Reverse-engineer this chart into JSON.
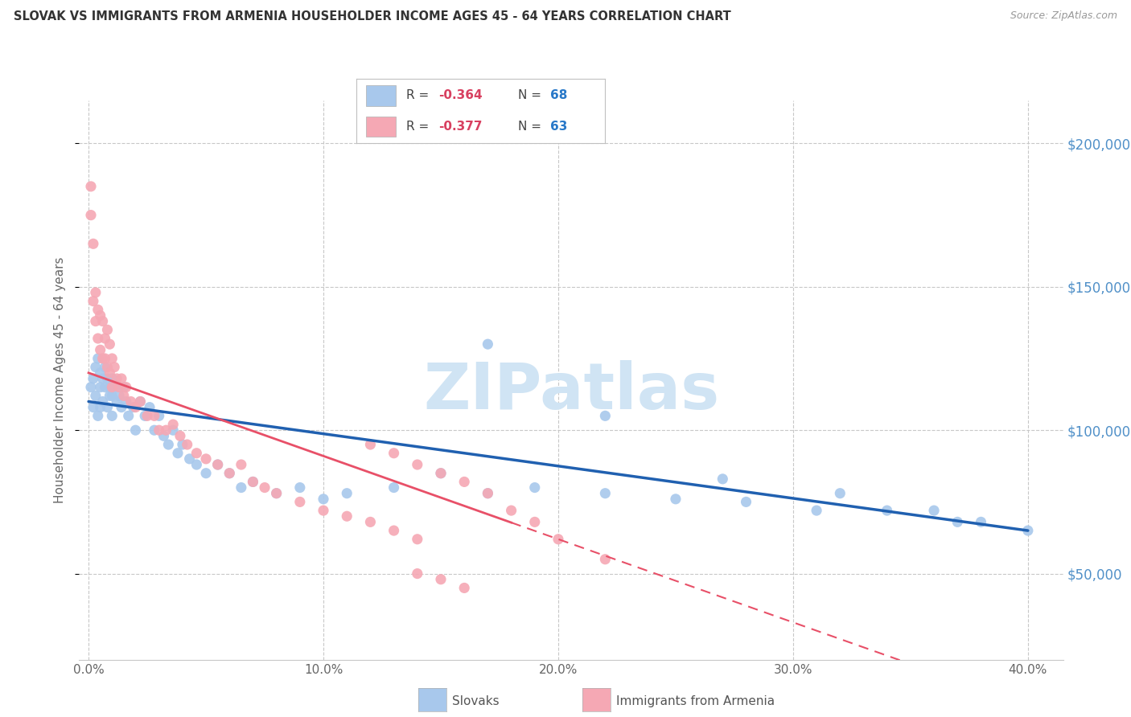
{
  "title": "SLOVAK VS IMMIGRANTS FROM ARMENIA HOUSEHOLDER INCOME AGES 45 - 64 YEARS CORRELATION CHART",
  "source": "Source: ZipAtlas.com",
  "ylabel": "Householder Income Ages 45 - 64 years",
  "x_tick_labels": [
    "0.0%",
    "10.0%",
    "20.0%",
    "30.0%",
    "40.0%"
  ],
  "x_tick_values": [
    0.0,
    0.1,
    0.2,
    0.3,
    0.4
  ],
  "y_tick_values": [
    50000,
    100000,
    150000,
    200000
  ],
  "xlim": [
    -0.004,
    0.415
  ],
  "ylim": [
    20000,
    215000
  ],
  "series1_label": "Slovaks",
  "series1_color": "#a8c8ec",
  "series1_line_color": "#2060b0",
  "series2_label": "Immigrants from Armenia",
  "series2_color": "#f5a8b4",
  "series2_line_color": "#e85068",
  "background_color": "#ffffff",
  "grid_color": "#c8c8c8",
  "title_color": "#333333",
  "right_axis_label_color": "#5090c8",
  "watermark_color": "#d0e4f4",
  "legend_R_color": "#d84060",
  "legend_N_color": "#2878c8",
  "slovaks_x": [
    0.001,
    0.002,
    0.002,
    0.003,
    0.003,
    0.004,
    0.004,
    0.005,
    0.005,
    0.005,
    0.006,
    0.006,
    0.007,
    0.007,
    0.008,
    0.008,
    0.009,
    0.009,
    0.01,
    0.01,
    0.01,
    0.011,
    0.012,
    0.013,
    0.014,
    0.015,
    0.016,
    0.017,
    0.019,
    0.02,
    0.022,
    0.024,
    0.026,
    0.028,
    0.03,
    0.032,
    0.034,
    0.036,
    0.038,
    0.04,
    0.043,
    0.046,
    0.05,
    0.055,
    0.06,
    0.065,
    0.07,
    0.08,
    0.09,
    0.1,
    0.11,
    0.13,
    0.15,
    0.17,
    0.19,
    0.22,
    0.25,
    0.28,
    0.31,
    0.34,
    0.17,
    0.22,
    0.27,
    0.32,
    0.36,
    0.37,
    0.38,
    0.4
  ],
  "slovaks_y": [
    115000,
    118000,
    108000,
    122000,
    112000,
    125000,
    105000,
    120000,
    115000,
    108000,
    118000,
    110000,
    122000,
    115000,
    118000,
    108000,
    115000,
    112000,
    118000,
    112000,
    105000,
    115000,
    110000,
    112000,
    108000,
    115000,
    110000,
    105000,
    108000,
    100000,
    110000,
    105000,
    108000,
    100000,
    105000,
    98000,
    95000,
    100000,
    92000,
    95000,
    90000,
    88000,
    85000,
    88000,
    85000,
    80000,
    82000,
    78000,
    80000,
    76000,
    78000,
    80000,
    85000,
    78000,
    80000,
    78000,
    76000,
    75000,
    72000,
    72000,
    130000,
    105000,
    83000,
    78000,
    72000,
    68000,
    68000,
    65000
  ],
  "armenia_x": [
    0.001,
    0.001,
    0.002,
    0.002,
    0.003,
    0.003,
    0.004,
    0.004,
    0.005,
    0.005,
    0.006,
    0.006,
    0.007,
    0.007,
    0.008,
    0.008,
    0.009,
    0.009,
    0.01,
    0.01,
    0.011,
    0.012,
    0.013,
    0.014,
    0.015,
    0.016,
    0.018,
    0.02,
    0.022,
    0.025,
    0.028,
    0.03,
    0.033,
    0.036,
    0.039,
    0.042,
    0.046,
    0.05,
    0.055,
    0.06,
    0.065,
    0.07,
    0.075,
    0.08,
    0.09,
    0.1,
    0.11,
    0.12,
    0.13,
    0.14,
    0.12,
    0.13,
    0.14,
    0.15,
    0.16,
    0.17,
    0.18,
    0.19,
    0.2,
    0.22,
    0.14,
    0.15,
    0.16
  ],
  "armenia_y": [
    185000,
    175000,
    165000,
    145000,
    148000,
    138000,
    142000,
    132000,
    140000,
    128000,
    138000,
    125000,
    132000,
    125000,
    135000,
    122000,
    130000,
    120000,
    125000,
    115000,
    122000,
    118000,
    115000,
    118000,
    112000,
    115000,
    110000,
    108000,
    110000,
    105000,
    105000,
    100000,
    100000,
    102000,
    98000,
    95000,
    92000,
    90000,
    88000,
    85000,
    88000,
    82000,
    80000,
    78000,
    75000,
    72000,
    70000,
    68000,
    65000,
    62000,
    95000,
    92000,
    88000,
    85000,
    82000,
    78000,
    72000,
    68000,
    62000,
    55000,
    50000,
    48000,
    45000
  ]
}
